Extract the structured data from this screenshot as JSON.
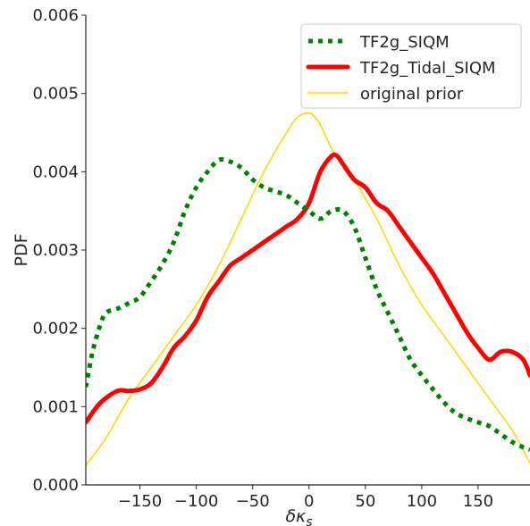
{
  "chart_data": {
    "type": "line",
    "xlabel": "δκs",
    "ylabel": "PDF",
    "xlim": [
      -198,
      196
    ],
    "ylim": [
      0,
      0.006
    ],
    "xticks": [
      -150,
      -100,
      -50,
      0,
      50,
      100,
      150
    ],
    "xtick_labels": [
      "−150",
      "−100",
      "−50",
      "0",
      "50",
      "100",
      "150"
    ],
    "yticks": [
      0,
      0.001,
      0.002,
      0.003,
      0.004,
      0.005,
      0.006
    ],
    "ytick_labels": [
      "0.000",
      "0.001",
      "0.002",
      "0.003",
      "0.004",
      "0.005",
      "0.006"
    ],
    "grid": false,
    "legend_position": "upper right",
    "series": [
      {
        "name": "TF2g_SIQM",
        "color": "#008000",
        "style": "dotted",
        "x": [
          -198,
          -192,
          -185,
          -180,
          -170,
          -160,
          -150,
          -140,
          -130,
          -120,
          -110,
          -100,
          -90,
          -80,
          -70,
          -60,
          -50,
          -40,
          -30,
          -20,
          -10,
          0,
          10,
          20,
          30,
          40,
          50,
          60,
          70,
          80,
          90,
          100,
          110,
          120,
          130,
          140,
          150,
          160,
          170,
          180,
          190,
          196
        ],
        "y": [
          0.00125,
          0.0017,
          0.00205,
          0.0022,
          0.00225,
          0.00232,
          0.0024,
          0.0026,
          0.00282,
          0.0031,
          0.0035,
          0.0038,
          0.004,
          0.00415,
          0.00413,
          0.00405,
          0.0039,
          0.0038,
          0.00375,
          0.0037,
          0.0036,
          0.0035,
          0.0034,
          0.0035,
          0.0035,
          0.0033,
          0.0029,
          0.0025,
          0.0022,
          0.0019,
          0.0016,
          0.0014,
          0.00122,
          0.00105,
          0.00092,
          0.00085,
          0.0008,
          0.00075,
          0.00065,
          0.00055,
          0.00048,
          0.00045
        ]
      },
      {
        "name": "TF2g_Tidal_SIQM",
        "color": "#ff0000",
        "style": "solid",
        "x": [
          -198,
          -185,
          -170,
          -160,
          -150,
          -140,
          -130,
          -120,
          -110,
          -100,
          -90,
          -80,
          -70,
          -60,
          -50,
          -40,
          -30,
          -20,
          -10,
          0,
          10,
          20,
          25,
          30,
          40,
          50,
          60,
          70,
          80,
          90,
          100,
          110,
          120,
          130,
          140,
          150,
          160,
          170,
          180,
          190,
          196
        ],
        "y": [
          0.0008,
          0.00105,
          0.0012,
          0.0012,
          0.00122,
          0.0013,
          0.0015,
          0.00175,
          0.0019,
          0.0021,
          0.0024,
          0.0026,
          0.0028,
          0.0029,
          0.003,
          0.0031,
          0.0032,
          0.0033,
          0.0034,
          0.0036,
          0.004,
          0.0042,
          0.0042,
          0.0041,
          0.0039,
          0.0038,
          0.0036,
          0.0035,
          0.0033,
          0.0031,
          0.0029,
          0.0027,
          0.00245,
          0.0022,
          0.00195,
          0.00175,
          0.0016,
          0.0017,
          0.0017,
          0.0016,
          0.0014
        ]
      },
      {
        "name": "original prior",
        "color": "#ffd700",
        "style": "solid-thin",
        "x": [
          -198,
          -180,
          -160,
          -140,
          -120,
          -100,
          -80,
          -60,
          -40,
          -20,
          -10,
          0,
          5,
          10,
          20,
          30,
          40,
          60,
          80,
          100,
          120,
          140,
          160,
          180,
          196
        ],
        "y": [
          0.00025,
          0.0006,
          0.0011,
          0.0015,
          0.0019,
          0.0023,
          0.0028,
          0.0034,
          0.004,
          0.0045,
          0.0047,
          0.00475,
          0.0047,
          0.0046,
          0.0043,
          0.0041,
          0.0039,
          0.0034,
          0.0028,
          0.0023,
          0.0019,
          0.0015,
          0.0011,
          0.0007,
          0.00028
        ]
      }
    ]
  }
}
